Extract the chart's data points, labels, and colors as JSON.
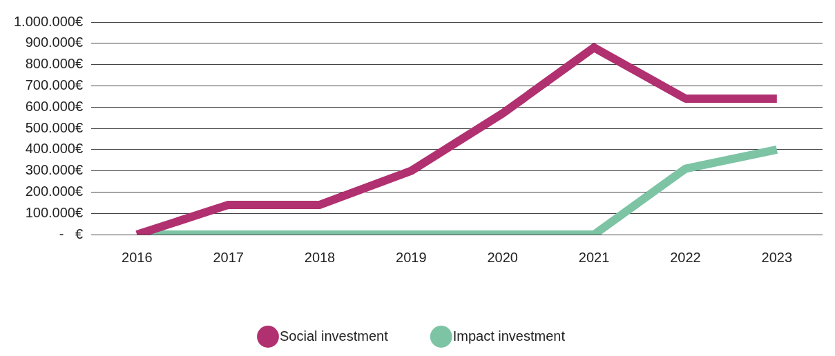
{
  "chart_data": {
    "type": "line",
    "categories": [
      "2016",
      "2017",
      "2018",
      "2019",
      "2020",
      "2021",
      "2022",
      "2023"
    ],
    "series": [
      {
        "name": "Social investment",
        "color": "#b03070",
        "values": [
          0,
          140000,
          140000,
          300000,
          570000,
          880000,
          640000,
          640000
        ]
      },
      {
        "name": "Impact investment",
        "color": "#7dc4a5",
        "values": [
          0,
          0,
          0,
          0,
          0,
          0,
          310000,
          400000
        ]
      }
    ],
    "ylim": [
      0,
      1000000
    ],
    "yticks": [
      {
        "value": 0,
        "label": "-   €"
      },
      {
        "value": 100000,
        "label": "100.000€"
      },
      {
        "value": 200000,
        "label": "200.000€"
      },
      {
        "value": 300000,
        "label": "300.000€"
      },
      {
        "value": 400000,
        "label": "400.000€"
      },
      {
        "value": 500000,
        "label": "500.000€"
      },
      {
        "value": 600000,
        "label": "600.000€"
      },
      {
        "value": 700000,
        "label": "700.000€"
      },
      {
        "value": 800000,
        "label": "800.000€"
      },
      {
        "value": 900000,
        "label": "900.000€"
      },
      {
        "value": 1000000,
        "label": "1.000.000€"
      }
    ],
    "grid": "y",
    "legend": "bottom",
    "line_style": "solid"
  }
}
